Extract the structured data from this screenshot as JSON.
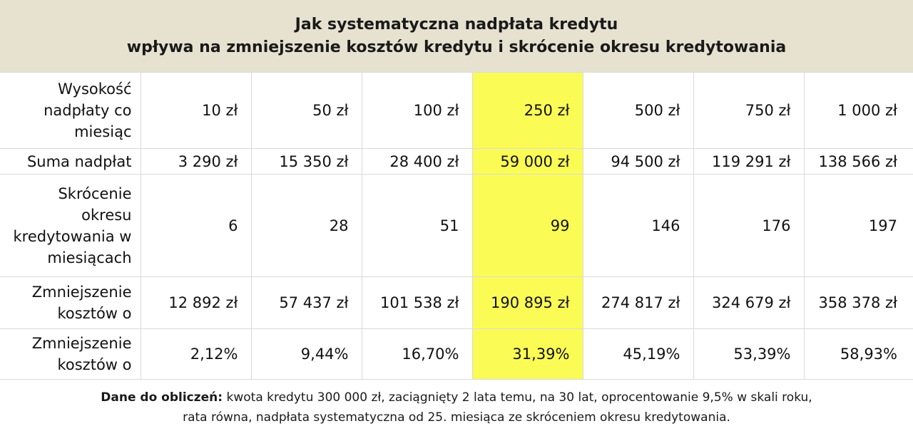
{
  "title": {
    "line1": "Jak systematyczna nadpłata kredytu",
    "line2": "wpływa na zmniejszenie kosztów kredytu i skrócenie okresu kredytowania"
  },
  "rows": [
    {
      "label_lines": [
        "Wysokość",
        "nadpłaty co",
        "miesiąc"
      ],
      "values": [
        "10 zł",
        "50 zł",
        "100 zł",
        "250 zł",
        "500 zł",
        "750 zł",
        "1 000 zł"
      ]
    },
    {
      "label_lines": [
        "Suma nadpłat"
      ],
      "values": [
        "3 290 zł",
        "15 350 zł",
        "28 400 zł",
        "59 000 zł",
        "94 500 zł",
        "119 291 zł",
        "138 566 zł"
      ]
    },
    {
      "label_lines": [
        "Skrócenie",
        "okresu",
        "kredytowania w",
        "miesiącach"
      ],
      "values": [
        "6",
        "28",
        "51",
        "99",
        "146",
        "176",
        "197"
      ]
    },
    {
      "label_lines": [
        "Zmniejszenie",
        "kosztów o"
      ],
      "values": [
        "12 892 zł",
        "57 437 zł",
        "101 538 zł",
        "190 895 zł",
        "274 817 zł",
        "324 679 zł",
        "358 378 zł"
      ]
    },
    {
      "label_lines": [
        "Zmniejszenie",
        "kosztów o"
      ],
      "values": [
        "2,12%",
        "9,44%",
        "16,70%",
        "31,39%",
        "45,19%",
        "53,39%",
        "58,93%"
      ]
    }
  ],
  "highlight_column_index": 3,
  "colors": {
    "title_bg": "#e7e1d0",
    "highlight": "#fbfb56",
    "grid": "#d9d9d9"
  },
  "footer": {
    "bold_prefix": "Dane do obliczeń:",
    "line1_rest": " kwota kredytu 300 000 zł, zaciągnięty 2 lata temu, na 30 lat, oprocentowanie 9,5% w skali roku,",
    "line2": "rata równa, nadpłata systematyczna od 25. miesiąca ze skróceniem okresu kredytowania."
  }
}
